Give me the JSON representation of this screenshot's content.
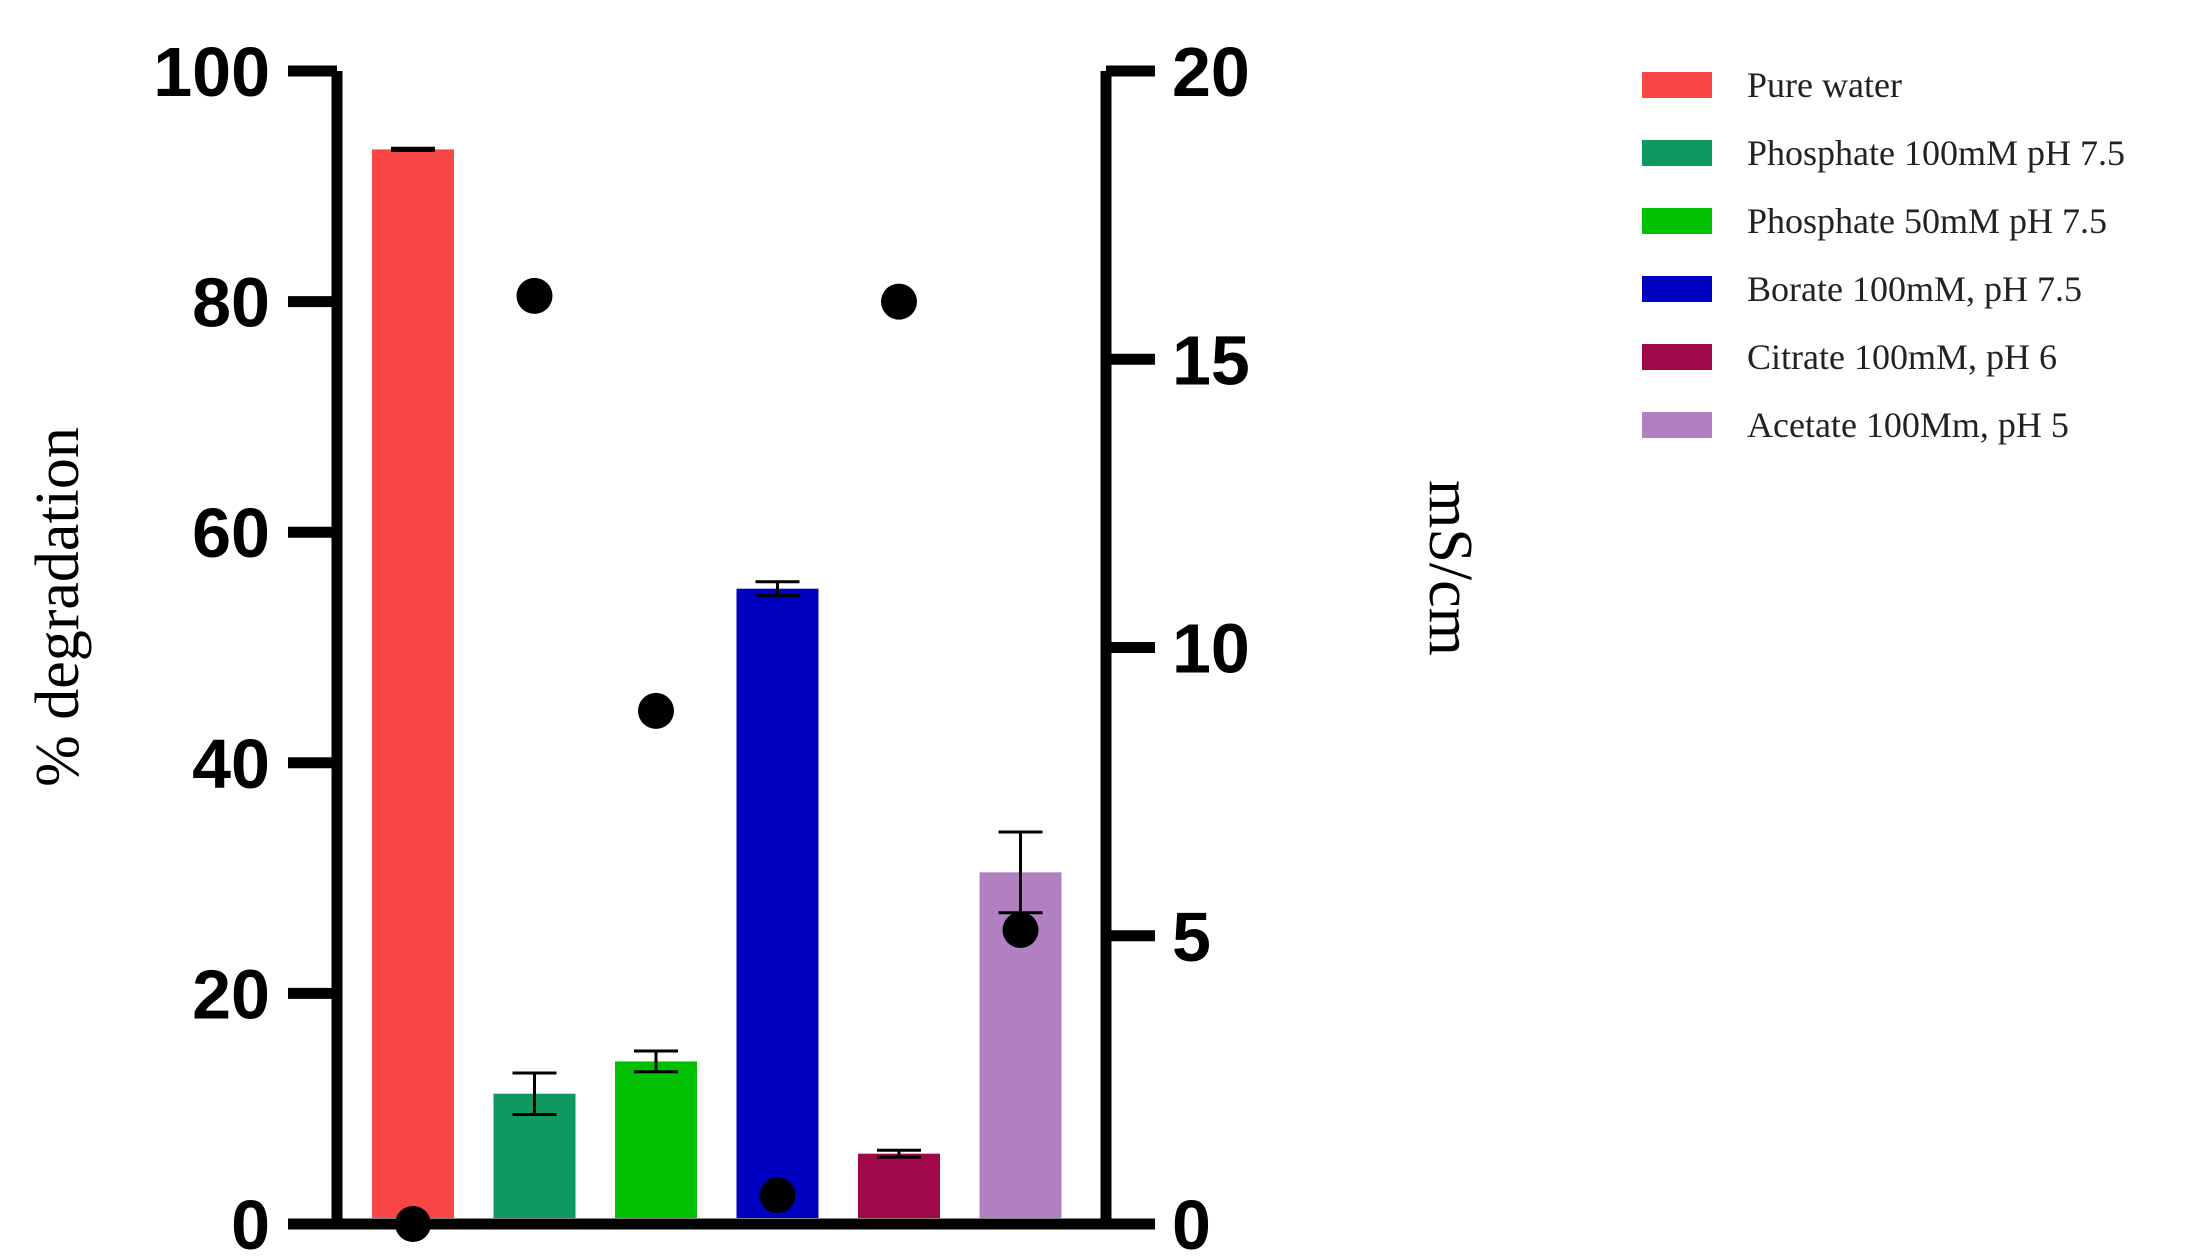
{
  "chart_data": {
    "type": "bar",
    "categories": [
      "Pure water",
      "Phosphate 100mM pH 7.5",
      "Phosphate 50mM pH 7.5",
      "Borate 100mM, pH 7.5",
      "Citrate 100mM, pH 6",
      "Acetate 100Mm, pH 5"
    ],
    "colors": [
      "#f84545",
      "#0f9960",
      "#00c000",
      "#0000c0",
      "#a0084a",
      "#b080c0"
    ],
    "series": [
      {
        "name": "% degradation",
        "axis": "left",
        "kind": "bar",
        "values": [
          93.2,
          11.3,
          14.1,
          55.1,
          6.1,
          30.5
        ],
        "error": [
          0.1,
          1.8,
          0.9,
          0.6,
          0.3,
          3.5
        ]
      },
      {
        "name": "mS/cm",
        "axis": "right",
        "kind": "scatter",
        "values": [
          0.0,
          16.1,
          8.9,
          0.5,
          16.0,
          5.1
        ]
      }
    ],
    "ylabel": "% degradation",
    "ylim": [
      0,
      100
    ],
    "yticks": [
      "0",
      "20",
      "40",
      "60",
      "80",
      "100"
    ],
    "y2label": "mS/cm",
    "y2lim": [
      0,
      20
    ],
    "y2ticks": [
      "0",
      "5",
      "10",
      "15",
      "20"
    ],
    "legend": [
      "Pure water",
      "Phosphate 100mM pH 7.5",
      "Phosphate 50mM pH 7.5",
      "Borate 100mM, pH 7.5",
      "Citrate 100mM, pH 6",
      "Acetate 100Mm, pH 5"
    ],
    "legend_position": "top-right",
    "grid": false
  }
}
